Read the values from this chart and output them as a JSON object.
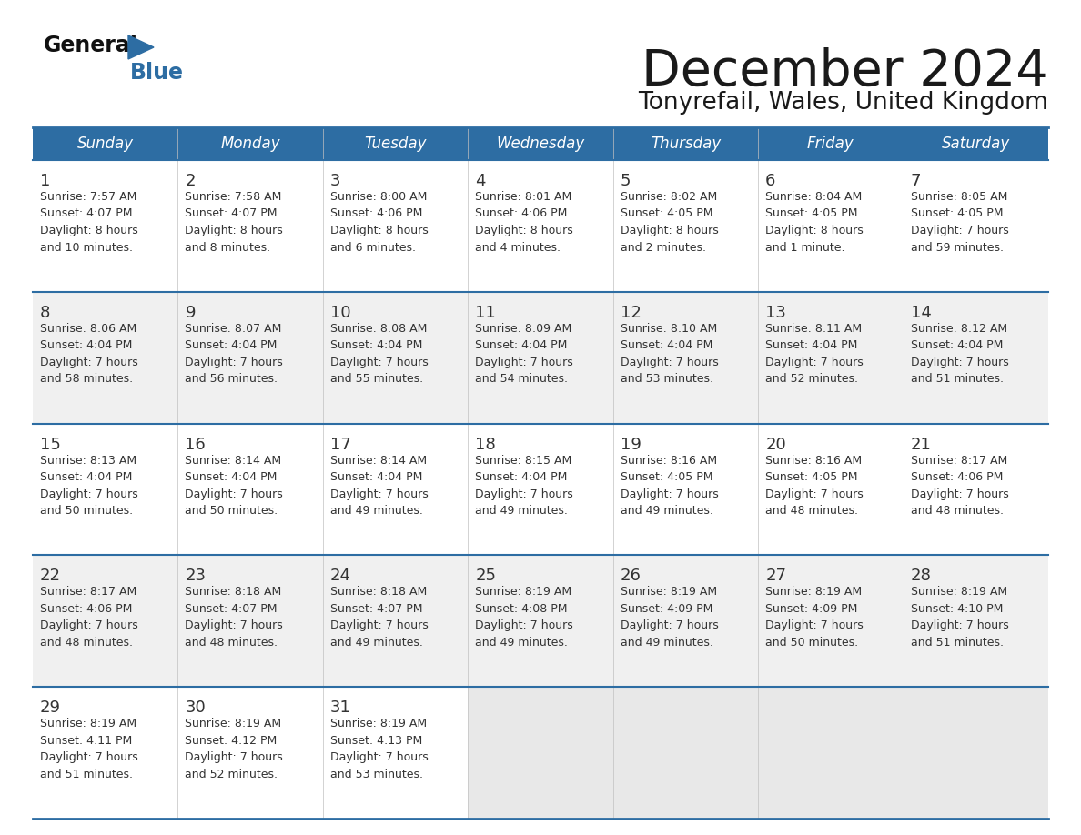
{
  "title": "December 2024",
  "subtitle": "Tonyrefail, Wales, United Kingdom",
  "header_color": "#2d6da3",
  "header_text_color": "#ffffff",
  "border_color": "#2d6da3",
  "row_separator_color": "#2d6da3",
  "day_headers": [
    "Sunday",
    "Monday",
    "Tuesday",
    "Wednesday",
    "Thursday",
    "Friday",
    "Saturday"
  ],
  "title_color": "#1a1a1a",
  "subtitle_color": "#1a1a1a",
  "number_color": "#333333",
  "text_color": "#333333",
  "logo_general_color": "#111111",
  "logo_blue_color": "#2d6da3",
  "row_bg_odd": "#f0f0f0",
  "row_bg_even": "#ffffff",
  "empty_cell_bg": "#e8e8e8",
  "weeks": [
    [
      {
        "day": 1,
        "sunrise": "7:57 AM",
        "sunset": "4:07 PM",
        "daylight": "8 hours and 10 minutes."
      },
      {
        "day": 2,
        "sunrise": "7:58 AM",
        "sunset": "4:07 PM",
        "daylight": "8 hours and 8 minutes."
      },
      {
        "day": 3,
        "sunrise": "8:00 AM",
        "sunset": "4:06 PM",
        "daylight": "8 hours and 6 minutes."
      },
      {
        "day": 4,
        "sunrise": "8:01 AM",
        "sunset": "4:06 PM",
        "daylight": "8 hours and 4 minutes."
      },
      {
        "day": 5,
        "sunrise": "8:02 AM",
        "sunset": "4:05 PM",
        "daylight": "8 hours and 2 minutes."
      },
      {
        "day": 6,
        "sunrise": "8:04 AM",
        "sunset": "4:05 PM",
        "daylight": "8 hours and 1 minute."
      },
      {
        "day": 7,
        "sunrise": "8:05 AM",
        "sunset": "4:05 PM",
        "daylight": "7 hours and 59 minutes."
      }
    ],
    [
      {
        "day": 8,
        "sunrise": "8:06 AM",
        "sunset": "4:04 PM",
        "daylight": "7 hours and 58 minutes."
      },
      {
        "day": 9,
        "sunrise": "8:07 AM",
        "sunset": "4:04 PM",
        "daylight": "7 hours and 56 minutes."
      },
      {
        "day": 10,
        "sunrise": "8:08 AM",
        "sunset": "4:04 PM",
        "daylight": "7 hours and 55 minutes."
      },
      {
        "day": 11,
        "sunrise": "8:09 AM",
        "sunset": "4:04 PM",
        "daylight": "7 hours and 54 minutes."
      },
      {
        "day": 12,
        "sunrise": "8:10 AM",
        "sunset": "4:04 PM",
        "daylight": "7 hours and 53 minutes."
      },
      {
        "day": 13,
        "sunrise": "8:11 AM",
        "sunset": "4:04 PM",
        "daylight": "7 hours and 52 minutes."
      },
      {
        "day": 14,
        "sunrise": "8:12 AM",
        "sunset": "4:04 PM",
        "daylight": "7 hours and 51 minutes."
      }
    ],
    [
      {
        "day": 15,
        "sunrise": "8:13 AM",
        "sunset": "4:04 PM",
        "daylight": "7 hours and 50 minutes."
      },
      {
        "day": 16,
        "sunrise": "8:14 AM",
        "sunset": "4:04 PM",
        "daylight": "7 hours and 50 minutes."
      },
      {
        "day": 17,
        "sunrise": "8:14 AM",
        "sunset": "4:04 PM",
        "daylight": "7 hours and 49 minutes."
      },
      {
        "day": 18,
        "sunrise": "8:15 AM",
        "sunset": "4:04 PM",
        "daylight": "7 hours and 49 minutes."
      },
      {
        "day": 19,
        "sunrise": "8:16 AM",
        "sunset": "4:05 PM",
        "daylight": "7 hours and 49 minutes."
      },
      {
        "day": 20,
        "sunrise": "8:16 AM",
        "sunset": "4:05 PM",
        "daylight": "7 hours and 48 minutes."
      },
      {
        "day": 21,
        "sunrise": "8:17 AM",
        "sunset": "4:06 PM",
        "daylight": "7 hours and 48 minutes."
      }
    ],
    [
      {
        "day": 22,
        "sunrise": "8:17 AM",
        "sunset": "4:06 PM",
        "daylight": "7 hours and 48 minutes."
      },
      {
        "day": 23,
        "sunrise": "8:18 AM",
        "sunset": "4:07 PM",
        "daylight": "7 hours and 48 minutes."
      },
      {
        "day": 24,
        "sunrise": "8:18 AM",
        "sunset": "4:07 PM",
        "daylight": "7 hours and 49 minutes."
      },
      {
        "day": 25,
        "sunrise": "8:19 AM",
        "sunset": "4:08 PM",
        "daylight": "7 hours and 49 minutes."
      },
      {
        "day": 26,
        "sunrise": "8:19 AM",
        "sunset": "4:09 PM",
        "daylight": "7 hours and 49 minutes."
      },
      {
        "day": 27,
        "sunrise": "8:19 AM",
        "sunset": "4:09 PM",
        "daylight": "7 hours and 50 minutes."
      },
      {
        "day": 28,
        "sunrise": "8:19 AM",
        "sunset": "4:10 PM",
        "daylight": "7 hours and 51 minutes."
      }
    ],
    [
      {
        "day": 29,
        "sunrise": "8:19 AM",
        "sunset": "4:11 PM",
        "daylight": "7 hours and 51 minutes."
      },
      {
        "day": 30,
        "sunrise": "8:19 AM",
        "sunset": "4:12 PM",
        "daylight": "7 hours and 52 minutes."
      },
      {
        "day": 31,
        "sunrise": "8:19 AM",
        "sunset": "4:13 PM",
        "daylight": "7 hours and 53 minutes."
      },
      null,
      null,
      null,
      null
    ]
  ]
}
